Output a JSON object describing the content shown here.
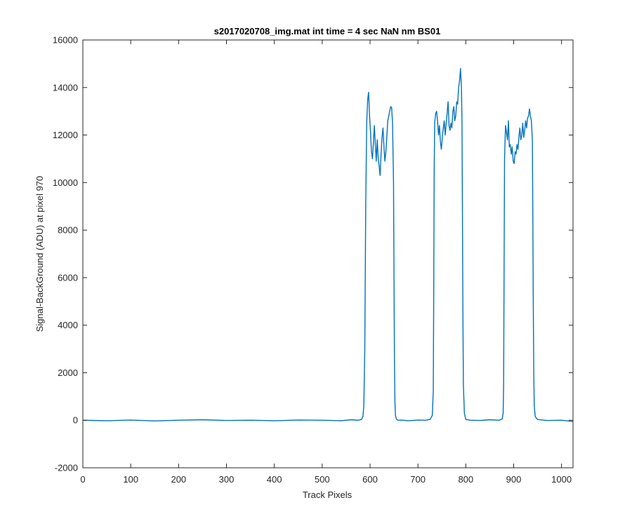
{
  "chart_data": {
    "type": "line",
    "title": "s2017020708_img.mat int time = 4 sec  NaN nm BS01",
    "xlabel": "Track Pixels",
    "ylabel": "Signal-BackGround (ADU) at pixel 970",
    "xlim": [
      0,
      1024
    ],
    "ylim": [
      -2000,
      16000
    ],
    "xticks": [
      0,
      100,
      200,
      300,
      400,
      500,
      600,
      700,
      800,
      900,
      1000
    ],
    "yticks": [
      -2000,
      0,
      2000,
      4000,
      6000,
      8000,
      10000,
      12000,
      14000,
      16000
    ],
    "xtick_labels": [
      "0",
      "100",
      "200",
      "300",
      "400",
      "500",
      "600",
      "700",
      "800",
      "900",
      "1000"
    ],
    "ytick_labels": [
      "-2000",
      "0",
      "2000",
      "4000",
      "6000",
      "8000",
      "10000",
      "12000",
      "14000",
      "16000"
    ],
    "grid": false,
    "legend": null,
    "line_color": "#0072BD",
    "series": [
      {
        "x": [
          0,
          50,
          100,
          150,
          200,
          250,
          300,
          350,
          400,
          450,
          500,
          540,
          560,
          575,
          582,
          585,
          587,
          589,
          591,
          593,
          595,
          597,
          599,
          601,
          603,
          605,
          607,
          609,
          611,
          613,
          615,
          617,
          619,
          621,
          623,
          625,
          627,
          629,
          631,
          633,
          635,
          637,
          639,
          641,
          643,
          645,
          647,
          649,
          650,
          651,
          652,
          653,
          655,
          658,
          665,
          680,
          700,
          715,
          725,
          730,
          732,
          733,
          734,
          735,
          737,
          739,
          741,
          743,
          745,
          747,
          749,
          751,
          753,
          755,
          757,
          759,
          761,
          763,
          765,
          767,
          769,
          771,
          773,
          775,
          777,
          779,
          781,
          783,
          785,
          787,
          789,
          791,
          792,
          793,
          794,
          795,
          797,
          800,
          810,
          830,
          850,
          870,
          876,
          878,
          879,
          880,
          881,
          883,
          885,
          887,
          889,
          891,
          893,
          895,
          897,
          899,
          901,
          903,
          905,
          907,
          909,
          911,
          913,
          915,
          917,
          919,
          921,
          923,
          925,
          927,
          929,
          931,
          933,
          935,
          937,
          939,
          940,
          941,
          942,
          943,
          945,
          950,
          970,
          1000,
          1024
        ],
        "y": [
          0,
          -20,
          10,
          -30,
          0,
          20,
          -10,
          0,
          -20,
          10,
          0,
          -20,
          20,
          0,
          30,
          150,
          600,
          3000,
          9000,
          12500,
          13500,
          13800,
          12800,
          12100,
          11300,
          11000,
          11700,
          12400,
          11600,
          10900,
          11800,
          11000,
          10700,
          10300,
          11200,
          11900,
          12300,
          11500,
          10900,
          11300,
          11900,
          12600,
          12800,
          13000,
          13200,
          13150,
          12500,
          10000,
          6000,
          2500,
          800,
          200,
          60,
          0,
          10,
          -20,
          10,
          0,
          30,
          200,
          1200,
          5000,
          10500,
          12500,
          12900,
          13000,
          12600,
          12000,
          12400,
          11700,
          11400,
          11900,
          12300,
          12600,
          12000,
          12500,
          12900,
          13400,
          12400,
          12200,
          12500,
          12300,
          13000,
          13200,
          12600,
          12800,
          13400,
          13300,
          14000,
          14300,
          14800,
          13900,
          12500,
          9000,
          4500,
          1500,
          300,
          30,
          0,
          -10,
          20,
          0,
          50,
          300,
          1500,
          6000,
          11000,
          12400,
          12100,
          11800,
          12600,
          11500,
          11600,
          11200,
          11500,
          10900,
          10800,
          11300,
          11200,
          11600,
          11400,
          11900,
          12300,
          11800,
          12000,
          12500,
          11900,
          12200,
          12600,
          12300,
          12700,
          12800,
          13100,
          12800,
          12600,
          11800,
          9000,
          5000,
          2000,
          600,
          150,
          30,
          -10,
          0,
          -50
        ]
      }
    ]
  }
}
